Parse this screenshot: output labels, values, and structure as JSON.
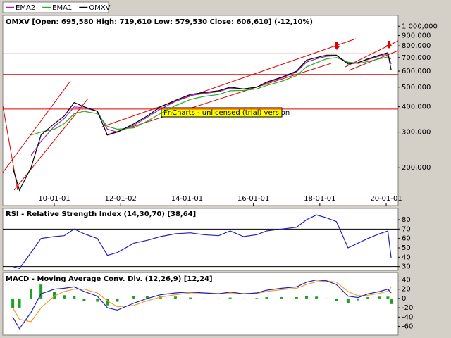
{
  "chart_data": [
    {
      "type": "line",
      "title": "OMXV [Open: 695,580  High: 719,610  Low: 579,530  Close: 606,610]  (-12,10%)",
      "annotation": "FnCharts - unlicensed (trial) version",
      "log_scale": true,
      "x": [
        2008.75,
        2008.95,
        2009.3,
        2009.6,
        2010.0,
        2010.3,
        2010.6,
        2010.9,
        2011.3,
        2011.6,
        2011.9,
        2012.4,
        2012.8,
        2013.2,
        2013.65,
        2014.1,
        2014.5,
        2014.95,
        2015.3,
        2015.7,
        2016.1,
        2016.4,
        2016.85,
        2017.3,
        2017.6,
        2017.9,
        2018.2,
        2018.5,
        2018.85,
        2019.15,
        2019.45,
        2019.8,
        2020.05,
        2020.15
      ],
      "xlim": [
        2008.45,
        2020.36
      ],
      "xticks": [
        {
          "value": 2010,
          "label": "10-01-01"
        },
        {
          "value": 2012,
          "label": "12-01-02"
        },
        {
          "value": 2014,
          "label": "14-01-01"
        },
        {
          "value": 2016,
          "label": "16-01-01"
        },
        {
          "value": 2018,
          "label": "18-01-01"
        },
        {
          "value": 2020,
          "label": "20-01-01"
        }
      ],
      "ylim": [
        130000,
        1130000
      ],
      "yticks": [
        {
          "value": 200000,
          "label": "200,000"
        },
        {
          "value": 300000,
          "label": "300,000"
        },
        {
          "value": 400000,
          "label": "400,000"
        },
        {
          "value": 500000,
          "label": "500,000"
        },
        {
          "value": 600000,
          "label": "600,000"
        },
        {
          "value": 700000,
          "label": "700,000"
        },
        {
          "value": 800000,
          "label": "800,000"
        },
        {
          "value": 900000,
          "label": "900,000"
        },
        {
          "value": 1000000,
          "label": "1 000,000"
        }
      ],
      "hlines": [
        731000,
        578000,
        390000,
        157000
      ],
      "hline_color": "#e00000",
      "series": [
        {
          "name": "EMA2",
          "color": "#a020c0",
          "values": [
            null,
            null,
            230000,
            270000,
            320000,
            350000,
            400000,
            395000,
            380000,
            310000,
            300000,
            325000,
            355000,
            390000,
            425000,
            455000,
            465000,
            475000,
            495000,
            490000,
            500000,
            525000,
            555000,
            595000,
            665000,
            690000,
            710000,
            715000,
            660000,
            662000,
            685000,
            712000,
            730000,
            650000
          ]
        },
        {
          "name": "EMA1",
          "color": "#20b020",
          "values": [
            null,
            null,
            290000,
            300000,
            310000,
            330000,
            370000,
            380000,
            370000,
            320000,
            310000,
            315000,
            340000,
            370000,
            405000,
            435000,
            450000,
            460000,
            480000,
            482000,
            490000,
            510000,
            535000,
            570000,
            630000,
            660000,
            690000,
            700000,
            665000,
            655000,
            670000,
            690000,
            705000,
            690000
          ]
        },
        {
          "name": "OMXV",
          "color": "#000000",
          "values": [
            200000,
            155000,
            200000,
            290000,
            330000,
            360000,
            420000,
            400000,
            380000,
            290000,
            300000,
            330000,
            360000,
            400000,
            430000,
            460000,
            470000,
            480000,
            500000,
            490000,
            500000,
            530000,
            560000,
            600000,
            680000,
            700000,
            720000,
            720000,
            650000,
            660000,
            690000,
            720000,
            740000,
            607000
          ]
        }
      ]
    },
    {
      "type": "line",
      "title": "RSI - Relative Strength Index (14,30,70) [38,64]",
      "ylim": [
        26,
        92
      ],
      "yticks": [
        30,
        40,
        50,
        60,
        70,
        80
      ],
      "levels": [
        30,
        70
      ],
      "series": [
        {
          "color": "#2020c0",
          "values": [
            30,
            28,
            45,
            60,
            62,
            63,
            70,
            65,
            60,
            42,
            45,
            55,
            58,
            62,
            65,
            66,
            64,
            63,
            68,
            62,
            64,
            68,
            70,
            72,
            80,
            85,
            82,
            78,
            50,
            55,
            60,
            65,
            68,
            39
          ]
        }
      ]
    },
    {
      "type": "line",
      "title": "MACD - Moving Average Conv. Div. (12,26,9) [12,24]",
      "ylim": [
        -79,
        56
      ],
      "yticks": [
        40,
        20,
        0,
        -20,
        -40,
        -60
      ],
      "series": [
        {
          "type": "bar",
          "color": "#20a020",
          "values": [
            -20,
            -20,
            20,
            30,
            15,
            7,
            5,
            -5,
            -7,
            -15,
            -7,
            5,
            5,
            5,
            4,
            2,
            0,
            -1,
            2,
            -1,
            1,
            3,
            3,
            3,
            5,
            4,
            0,
            -5,
            -10,
            -4,
            3,
            4,
            4,
            -12
          ]
        },
        {
          "color": "#f0a030",
          "values": [
            -20,
            -45,
            -50,
            -20,
            5,
            15,
            20,
            20,
            12,
            -5,
            -18,
            -15,
            -5,
            3,
            8,
            12,
            12,
            11,
            12,
            11,
            11,
            15,
            19,
            22,
            30,
            36,
            38,
            35,
            15,
            6,
            7,
            11,
            16,
            24
          ]
        },
        {
          "color": "#2020c0",
          "values": [
            -40,
            -65,
            -30,
            10,
            20,
            22,
            25,
            15,
            5,
            -20,
            -25,
            -10,
            0,
            8,
            12,
            14,
            12,
            10,
            14,
            10,
            12,
            18,
            22,
            25,
            35,
            40,
            38,
            30,
            5,
            2,
            10,
            15,
            20,
            12
          ]
        }
      ]
    }
  ]
}
